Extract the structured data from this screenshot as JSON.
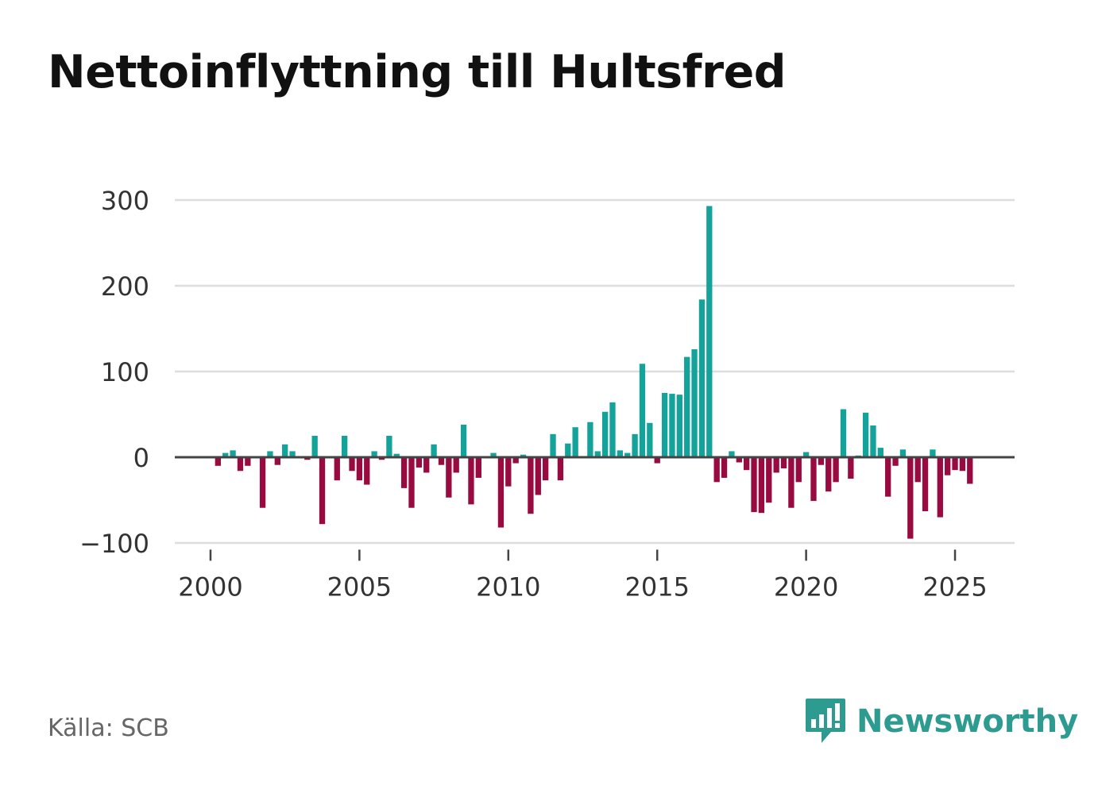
{
  "title": "Nettoinflyttning till Hultsfred",
  "source": "Källa: SCB",
  "brand": {
    "name": "Newsworthy",
    "logo_icon": "bar-chart-bubble-icon"
  },
  "colors": {
    "positive": "#14a39a",
    "negative": "#980a40",
    "grid": "#dddddd",
    "zero": "#444444",
    "text": "#333333",
    "brand": "#2e9b90"
  },
  "chart_data": {
    "type": "bar",
    "title": "Nettoinflyttning till Hultsfred",
    "xlabel": "",
    "ylabel": "",
    "frequency": "quarterly",
    "x_start": 2000.25,
    "x_step": 0.25,
    "xlim": [
      1998.8,
      2027.0
    ],
    "ylim": [
      -105,
      300
    ],
    "y_ticks": [
      300,
      200,
      100,
      0,
      -100
    ],
    "y_tick_labels": [
      "300",
      "200",
      "100",
      "0",
      "−100"
    ],
    "x_ticks": [
      2000,
      2005,
      2010,
      2015,
      2020,
      2025
    ],
    "x_tick_labels": [
      "2000",
      "2005",
      "2010",
      "2015",
      "2020",
      "2025"
    ],
    "values": [
      -10,
      5,
      8,
      -16,
      -10,
      0,
      -59,
      7,
      -9,
      15,
      7,
      0,
      -3,
      25,
      -78,
      0,
      -27,
      25,
      -16,
      -27,
      -32,
      7,
      -3,
      25,
      4,
      -36,
      -59,
      -12,
      -18,
      15,
      -9,
      -47,
      -18,
      38,
      -55,
      -24,
      0,
      5,
      -82,
      -34,
      -7,
      3,
      -66,
      -44,
      -27,
      27,
      -27,
      16,
      35,
      0,
      41,
      7,
      53,
      64,
      8,
      5,
      27,
      109,
      40,
      -7,
      75,
      74,
      73,
      117,
      126,
      184,
      293,
      -29,
      -24,
      7,
      -6,
      -15,
      -64,
      -65,
      -53,
      -18,
      -13,
      -59,
      -29,
      6,
      -51,
      -9,
      -40,
      -29,
      56,
      -25,
      2,
      52,
      37,
      11,
      -46,
      -10,
      9,
      -95,
      -29,
      -63,
      9,
      -70,
      -21,
      -15,
      -16,
      -31
    ]
  }
}
